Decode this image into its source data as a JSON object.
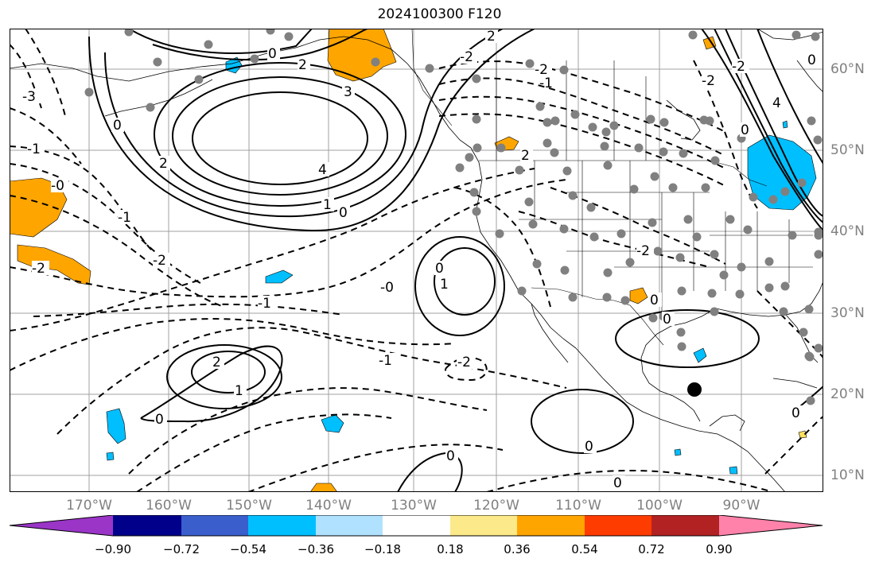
{
  "title": "2024100300 F120",
  "lon_labels": [
    {
      "text": "170°W"
    },
    {
      "text": "160°W"
    },
    {
      "text": "150°W"
    },
    {
      "text": "140°W"
    },
    {
      "text": "130°W"
    },
    {
      "text": "120°W"
    },
    {
      "text": "110°W"
    },
    {
      "text": "100°W"
    },
    {
      "text": "90°W"
    }
  ],
  "lat_labels": [
    {
      "text": "60°N"
    },
    {
      "text": "50°N"
    },
    {
      "text": "40°N"
    },
    {
      "text": "30°N"
    },
    {
      "text": "20°N"
    },
    {
      "text": "10°N"
    }
  ],
  "colorbar": {
    "colors": [
      "#9a35c8",
      "#00008b",
      "#3a5fcd",
      "#00bfff",
      "#b0e2ff",
      "#ffffff",
      "#fbe98a",
      "#ffa500",
      "#ff3c00",
      "#b22222",
      "#ff82ab"
    ],
    "ticks": [
      "−0.90",
      "−0.72",
      "−0.54",
      "−0.36",
      "−0.18",
      "0.18",
      "0.36",
      "0.54",
      "0.72",
      "0.90"
    ]
  },
  "contour_labels": [
    {
      "text": "2"
    },
    {
      "text": "0"
    },
    {
      "text": "-2"
    },
    {
      "text": "3"
    },
    {
      "text": "2"
    },
    {
      "text": "-3"
    },
    {
      "text": "0"
    },
    {
      "text": "2"
    },
    {
      "text": "4"
    },
    {
      "text": "1"
    },
    {
      "text": "0"
    },
    {
      "text": "-1"
    },
    {
      "text": "-1"
    },
    {
      "text": "-0"
    },
    {
      "text": "-2"
    },
    {
      "text": "-2"
    },
    {
      "text": "-2"
    },
    {
      "text": "0"
    },
    {
      "text": "1"
    },
    {
      "text": "-0"
    },
    {
      "text": "-1"
    },
    {
      "text": "-1"
    },
    {
      "text": "2"
    },
    {
      "text": "1"
    },
    {
      "text": "0"
    },
    {
      "text": "-2"
    },
    {
      "text": "0"
    },
    {
      "text": "0"
    },
    {
      "text": "0"
    },
    {
      "text": "0"
    },
    {
      "text": "0"
    },
    {
      "text": "-1"
    },
    {
      "text": "-2"
    },
    {
      "text": "2"
    },
    {
      "text": "0"
    },
    {
      "text": "-2"
    },
    {
      "text": "0"
    },
    {
      "text": "4"
    },
    {
      "text": "-2"
    },
    {
      "text": "0"
    }
  ]
}
